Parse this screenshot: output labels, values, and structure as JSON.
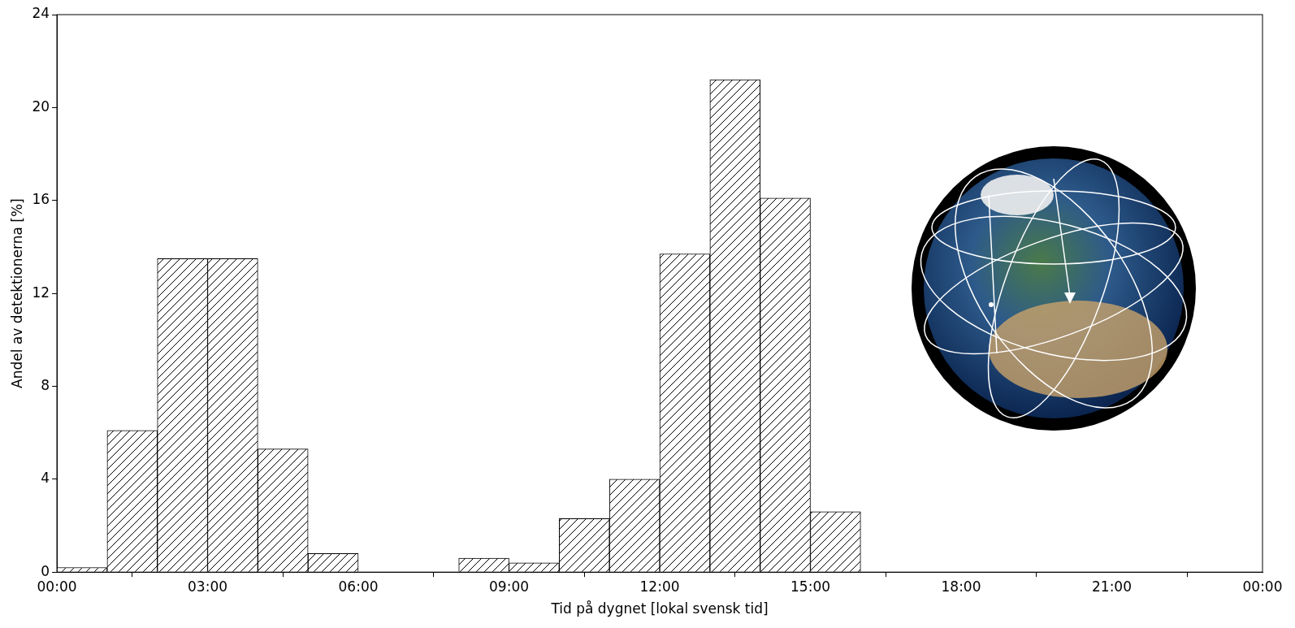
{
  "chart_data": {
    "type": "histogram",
    "xlabel": "Tid på dygnet [lokal svensk tid]",
    "ylabel": "Andel av detektionerna [%]",
    "bins": [
      0,
      1,
      2,
      3,
      4,
      5,
      6,
      7,
      8,
      9,
      10,
      11,
      12,
      13,
      14,
      15,
      16,
      17,
      18,
      19,
      20,
      21,
      22,
      23,
      24
    ],
    "values": [
      0.2,
      6.1,
      13.5,
      13.5,
      5.3,
      0.8,
      0,
      0,
      0.6,
      0.4,
      2.3,
      4.0,
      13.7,
      21.2,
      16.1,
      2.6,
      0,
      0,
      0,
      0,
      0,
      0,
      0,
      0
    ],
    "color": "#000000",
    "xlim": [
      0,
      24
    ],
    "xticks": [
      {
        "value": 0,
        "label": "00:00"
      },
      {
        "value": 3,
        "label": "03:00"
      },
      {
        "value": 6,
        "label": "06:00"
      },
      {
        "value": 9,
        "label": "09:00"
      },
      {
        "value": 12,
        "label": "12:00"
      },
      {
        "value": 15,
        "label": "15:00"
      },
      {
        "value": 18,
        "label": "18:00"
      },
      {
        "value": 21,
        "label": "21:00"
      },
      {
        "value": 24,
        "label": "00:00"
      }
    ],
    "ylim": [
      0,
      24
    ],
    "yticks": [
      0,
      4,
      8,
      12,
      16,
      20,
      24
    ],
    "grid": false
  }
}
